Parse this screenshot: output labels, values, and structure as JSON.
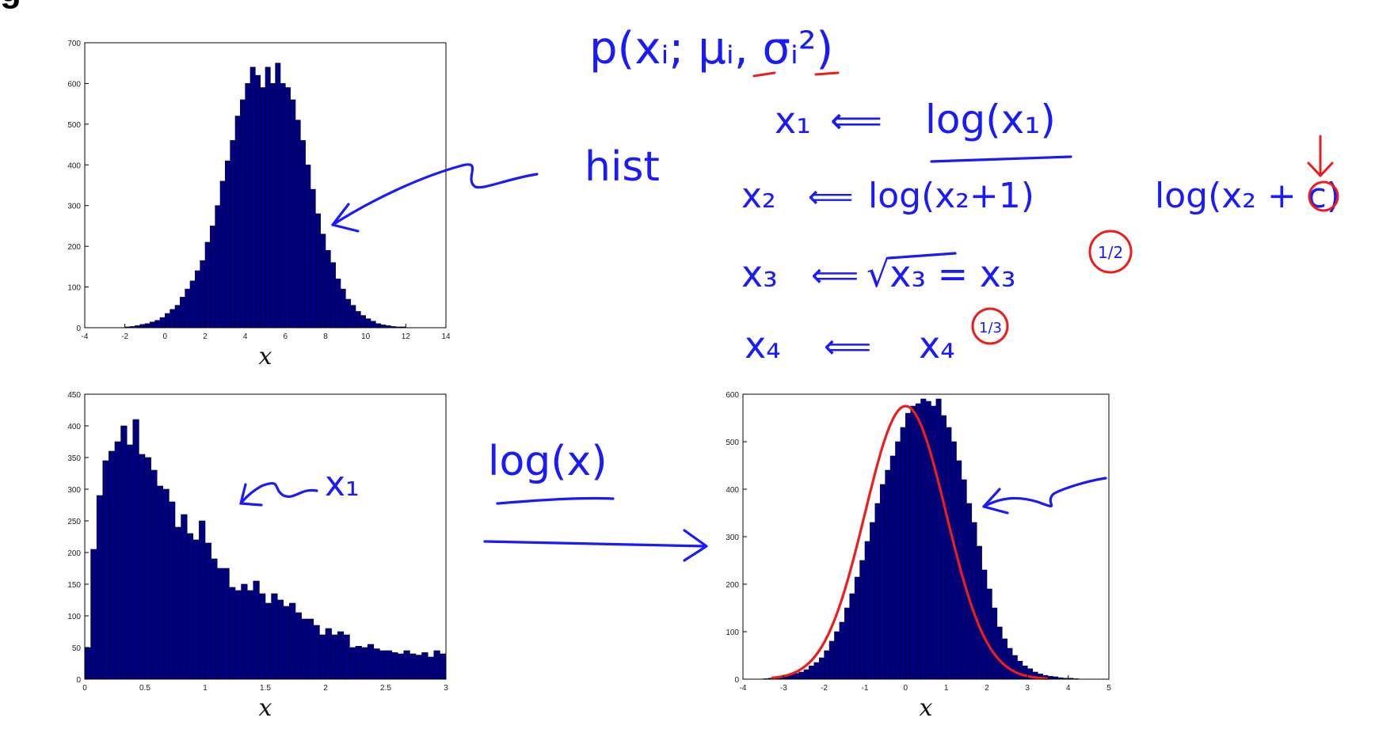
{
  "slide": {
    "title_fragment": "g"
  },
  "chart_data": [
    {
      "type": "bar",
      "xlabel": "x",
      "ylabel": "",
      "xlim": [
        -4,
        14
      ],
      "ylim": [
        0,
        700
      ],
      "xticks": [
        -4,
        -2,
        0,
        2,
        4,
        6,
        8,
        10,
        12,
        14
      ],
      "yticks": [
        0,
        100,
        200,
        300,
        400,
        500,
        600,
        700
      ],
      "bin_start": -2.0,
      "bin_width": 0.25,
      "values": [
        2,
        3,
        5,
        8,
        10,
        14,
        18,
        25,
        35,
        45,
        55,
        75,
        95,
        115,
        140,
        165,
        210,
        250,
        300,
        360,
        410,
        460,
        520,
        560,
        600,
        640,
        620,
        590,
        640,
        600,
        650,
        600,
        590,
        560,
        510,
        460,
        400,
        340,
        280,
        230,
        190,
        160,
        120,
        95,
        70,
        55,
        40,
        30,
        22,
        16,
        10,
        7,
        5,
        3,
        2,
        2
      ],
      "color": "#00007f"
    },
    {
      "type": "bar",
      "xlabel": "x",
      "ylabel": "",
      "xlim": [
        0,
        3
      ],
      "ylim": [
        0,
        450
      ],
      "xticks": [
        0,
        0.5,
        1,
        1.5,
        2,
        2.5,
        3
      ],
      "yticks": [
        0,
        50,
        100,
        150,
        200,
        250,
        300,
        350,
        400,
        450
      ],
      "bin_start": 0,
      "bin_width": 0.05,
      "values": [
        50,
        205,
        290,
        345,
        360,
        375,
        400,
        370,
        410,
        355,
        350,
        330,
        305,
        300,
        280,
        240,
        260,
        230,
        220,
        250,
        215,
        190,
        175,
        175,
        145,
        140,
        150,
        140,
        155,
        135,
        120,
        135,
        125,
        115,
        120,
        105,
        95,
        95,
        85,
        70,
        80,
        70,
        75,
        70,
        50,
        52,
        50,
        55,
        48,
        45,
        45,
        42,
        40,
        45,
        40,
        38,
        42,
        35,
        45,
        40
      ],
      "color": "#00007f"
    },
    {
      "type": "bar",
      "xlabel": "x",
      "ylabel": "",
      "xlim": [
        -4,
        5
      ],
      "ylim": [
        0,
        600
      ],
      "xticks": [
        -4,
        -3,
        -2,
        -1,
        0,
        1,
        2,
        3,
        4,
        5
      ],
      "yticks": [
        0,
        100,
        200,
        300,
        400,
        500,
        600
      ],
      "bin_start": -3.5,
      "bin_width": 0.125,
      "values": [
        1,
        2,
        3,
        5,
        8,
        10,
        12,
        15,
        20,
        28,
        35,
        45,
        60,
        80,
        100,
        120,
        150,
        180,
        215,
        250,
        290,
        330,
        370,
        410,
        440,
        470,
        500,
        530,
        560,
        575,
        580,
        590,
        585,
        575,
        590,
        555,
        530,
        500,
        460,
        420,
        370,
        330,
        280,
        230,
        190,
        150,
        110,
        85,
        65,
        50,
        38,
        28,
        22,
        15,
        11,
        8,
        6,
        5,
        3,
        2,
        2,
        1
      ],
      "color": "#00007f",
      "overlay_curve": {
        "type": "gaussian",
        "mean": 0,
        "sd": 1.0,
        "peak": 575,
        "color": "#ee1c1c"
      }
    }
  ],
  "annotations": {
    "top_formula": "p(xᵢ; μᵢ, σᵢ²)",
    "hist_label": "hist",
    "x1_label": "x₁",
    "transform_label": "log(x)",
    "rules": [
      {
        "lhs": "x₁",
        "rhs": "log(x₁)"
      },
      {
        "lhs": "x₂",
        "rhs": "log(x₂+1)"
      },
      {
        "lhs": "x₃",
        "rhs": "√x₃ = x₃",
        "exponent": "1/2"
      },
      {
        "lhs": "x₄",
        "rhs": "x₄",
        "exponent": "1/3"
      }
    ],
    "alt_formula": "log(x₂ + c)",
    "alt_highlight": "c",
    "arrow_symbol": "⟸",
    "equals_symbol": "="
  }
}
